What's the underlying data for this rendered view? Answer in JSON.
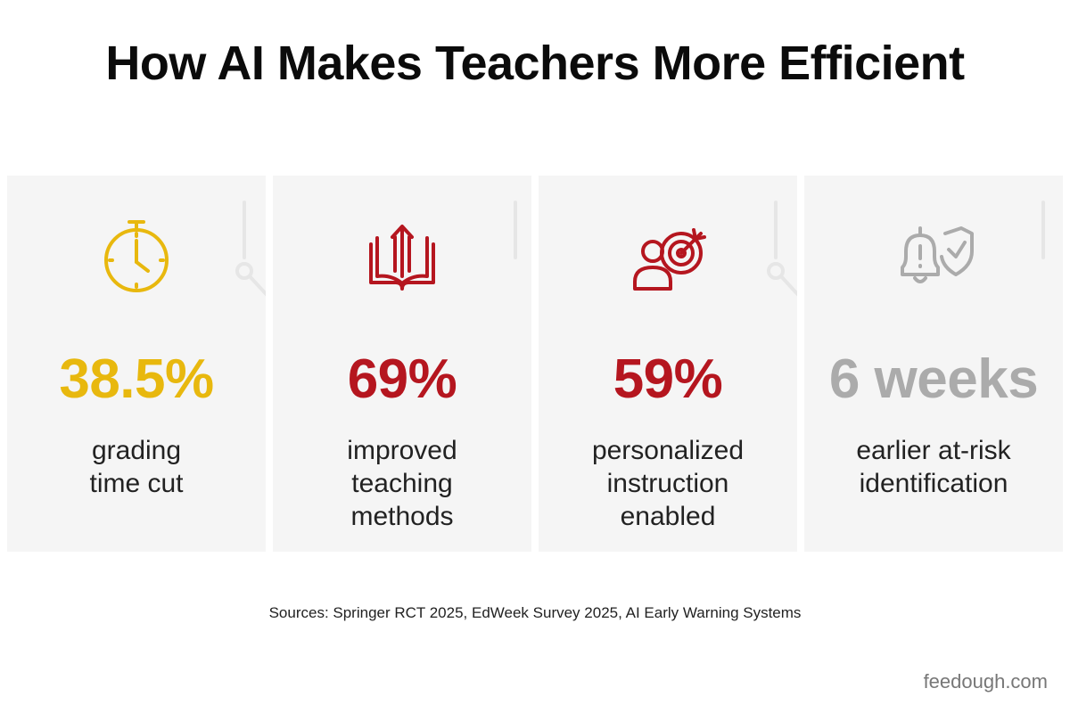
{
  "title": "How AI Makes Teachers More Efficient",
  "stats": [
    {
      "value": "38.5%",
      "description": "grading time cut",
      "icon": "stopwatch-icon",
      "color": "#E8B80E"
    },
    {
      "value": "69%",
      "description": "improved teaching methods",
      "icon": "book-arrow-up-icon",
      "color": "#B5161F"
    },
    {
      "value": "59%",
      "description": "personalized instruction enabled",
      "icon": "person-target-icon",
      "color": "#B5161F"
    },
    {
      "value": "6 weeks",
      "description": "earlier at-risk identification",
      "icon": "bell-alert-shield-icon",
      "color": "#ABABAB"
    }
  ],
  "sources": "Sources: Springer RCT 2025, EdWeek Survey 2025, AI Early Warning Systems",
  "brand": "feedough.com"
}
